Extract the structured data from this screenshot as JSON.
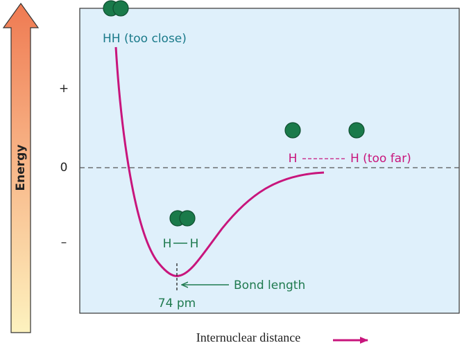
{
  "axis": {
    "label": "Energy",
    "ticks": [
      "+",
      "0",
      "–"
    ]
  },
  "x_label": "Internuclear distance",
  "annotations": {
    "too_close": "HH (too close)",
    "bond": {
      "left": "H",
      "right": "H"
    },
    "too_far": {
      "left": "H",
      "right": "H (too far)"
    },
    "bond_length": "Bond length",
    "distance": "74 pm"
  }
}
